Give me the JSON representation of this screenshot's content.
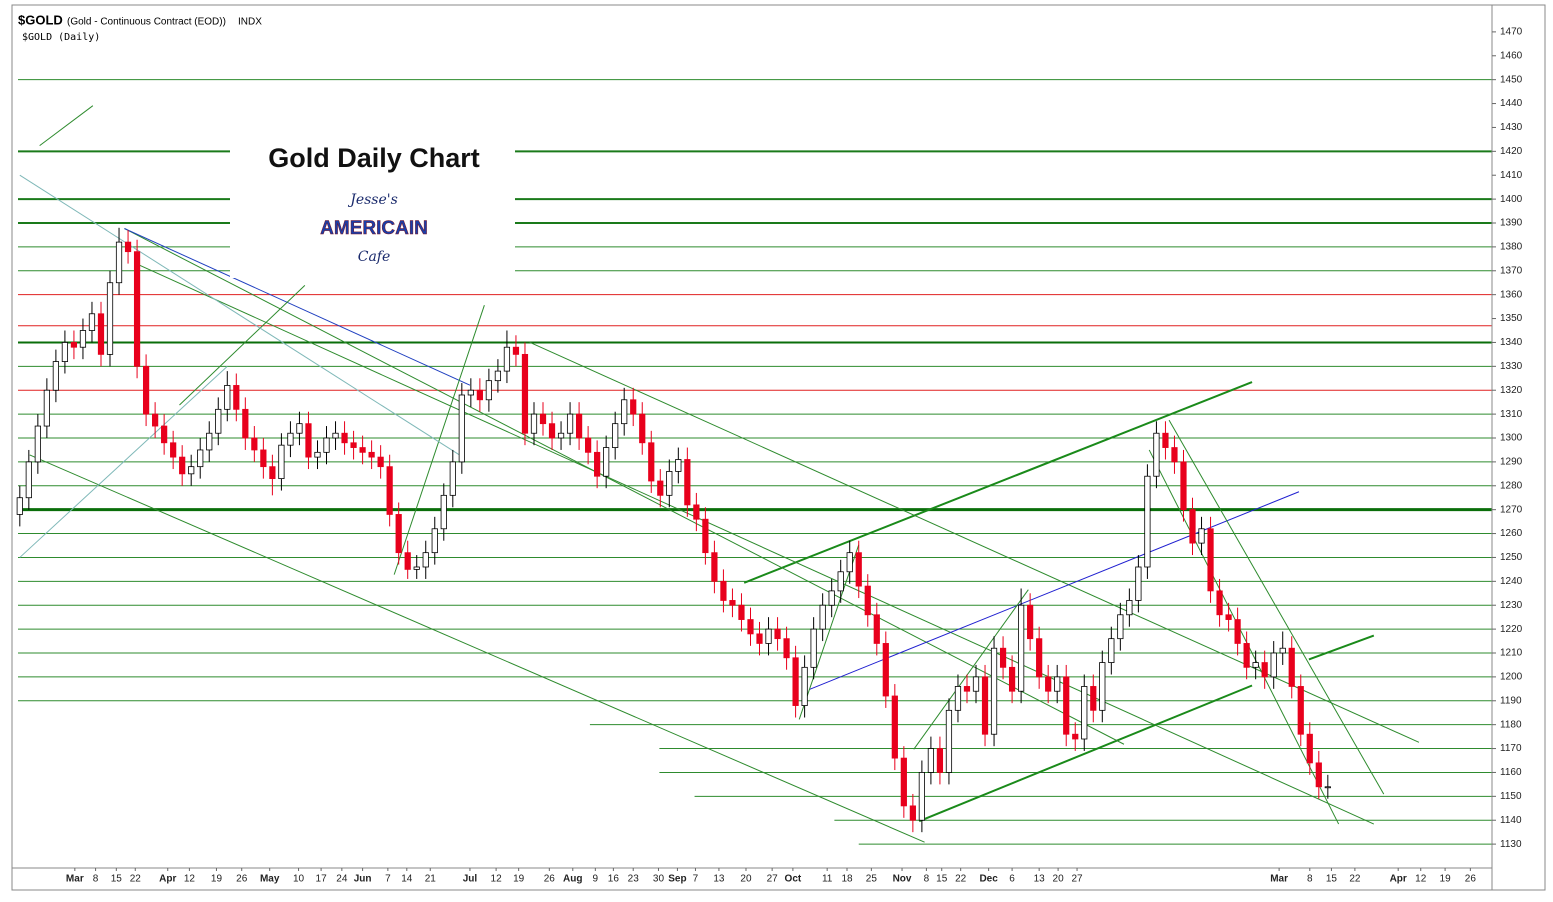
{
  "chart_data": {
    "type": "candlestick",
    "symbol": "$GOLD",
    "description": "(Gold - Continuous Contract (EOD))",
    "exchange": "INDX",
    "subtitle": "$GOLD (Daily)",
    "title": "Gold Daily Chart",
    "logo": [
      "Jesse's",
      "AMERICAIN",
      "Cafe"
    ],
    "up_color": "#ffffff",
    "down_color": "#e8001c",
    "ylim": [
      1120,
      1480
    ],
    "yticks": [
      1130,
      1140,
      1150,
      1160,
      1170,
      1180,
      1190,
      1200,
      1210,
      1220,
      1230,
      1240,
      1250,
      1260,
      1270,
      1280,
      1290,
      1300,
      1310,
      1320,
      1330,
      1340,
      1350,
      1360,
      1370,
      1380,
      1390,
      1400,
      1410,
      1420,
      1430,
      1440,
      1450,
      1460,
      1470
    ],
    "xlim": [
      -0.2,
      163.2
    ],
    "xticks": [
      {
        "value": 6.1,
        "label": "Mar"
      },
      {
        "value": 8.4,
        "label": "8"
      },
      {
        "value": 10.7,
        "label": "15"
      },
      {
        "value": 12.8,
        "label": "22"
      },
      {
        "value": 16.4,
        "label": "Apr"
      },
      {
        "value": 18.8,
        "label": "12"
      },
      {
        "value": 21.8,
        "label": "19"
      },
      {
        "value": 24.6,
        "label": "26"
      },
      {
        "value": 27.7,
        "label": "May"
      },
      {
        "value": 30.9,
        "label": "10"
      },
      {
        "value": 33.4,
        "label": "17"
      },
      {
        "value": 35.7,
        "label": "24"
      },
      {
        "value": 38.0,
        "label": "Jun"
      },
      {
        "value": 40.8,
        "label": "7"
      },
      {
        "value": 42.9,
        "label": "14"
      },
      {
        "value": 45.5,
        "label": "21"
      },
      {
        "value": 49.9,
        "label": "Jul"
      },
      {
        "value": 52.8,
        "label": "12"
      },
      {
        "value": 55.3,
        "label": "19"
      },
      {
        "value": 58.7,
        "label": "26"
      },
      {
        "value": 61.3,
        "label": "Aug"
      },
      {
        "value": 63.8,
        "label": "9"
      },
      {
        "value": 65.8,
        "label": "16"
      },
      {
        "value": 68.0,
        "label": "23"
      },
      {
        "value": 70.8,
        "label": "30"
      },
      {
        "value": 72.9,
        "label": "Sep"
      },
      {
        "value": 74.9,
        "label": "7"
      },
      {
        "value": 77.5,
        "label": "13"
      },
      {
        "value": 80.5,
        "label": "20"
      },
      {
        "value": 83.4,
        "label": "27"
      },
      {
        "value": 85.7,
        "label": "Oct"
      },
      {
        "value": 89.5,
        "label": "11"
      },
      {
        "value": 91.7,
        "label": "18"
      },
      {
        "value": 94.4,
        "label": "25"
      },
      {
        "value": 97.8,
        "label": "Nov"
      },
      {
        "value": 100.5,
        "label": "8"
      },
      {
        "value": 102.2,
        "label": "15"
      },
      {
        "value": 104.3,
        "label": "22"
      },
      {
        "value": 107.4,
        "label": "Dec"
      },
      {
        "value": 110.0,
        "label": "6"
      },
      {
        "value": 113.0,
        "label": "13"
      },
      {
        "value": 115.1,
        "label": "20"
      },
      {
        "value": 117.2,
        "label": "27"
      },
      {
        "value": 139.6,
        "label": "Mar"
      },
      {
        "value": 143.0,
        "label": "8"
      },
      {
        "value": 145.4,
        "label": "15"
      },
      {
        "value": 148.0,
        "label": "22"
      },
      {
        "value": 152.8,
        "label": "Apr"
      },
      {
        "value": 155.3,
        "label": "12"
      },
      {
        "value": 158.0,
        "label": "19"
      },
      {
        "value": 160.8,
        "label": "26"
      }
    ],
    "open": [
      1268,
      1275,
      1290,
      1305,
      1320,
      1332,
      1340,
      1338,
      1345,
      1352,
      1335,
      1365,
      1382,
      1378,
      1330,
      1310,
      1305,
      1298,
      1292,
      1285,
      1288,
      1295,
      1302,
      1312,
      1322,
      1312,
      1300,
      1295,
      1288,
      1283,
      1297,
      1302,
      1306,
      1292,
      1294,
      1300,
      1302,
      1298,
      1296,
      1294,
      1292,
      1288,
      1268,
      1252,
      1245,
      1246,
      1252,
      1262,
      1276,
      1290,
      1318,
      1320,
      1316,
      1324,
      1328,
      1338,
      1335,
      1302,
      1310,
      1306,
      1300,
      1302,
      1310,
      1300,
      1294,
      1284,
      1296,
      1306,
      1316,
      1310,
      1298,
      1282,
      1276,
      1286,
      1291,
      1272,
      1266,
      1252,
      1240,
      1232,
      1230,
      1224,
      1218,
      1214,
      1220,
      1216,
      1208,
      1188,
      1204,
      1220,
      1230,
      1236,
      1244,
      1252,
      1238,
      1226,
      1214,
      1192,
      1166,
      1146,
      1140,
      1160,
      1170,
      1160,
      1186,
      1196,
      1194,
      1200,
      1176,
      1212,
      1204,
      1194,
      1230,
      1216,
      1200,
      1194,
      1200,
      1176,
      1174,
      1196,
      1186,
      1206,
      1216,
      1226,
      1232,
      1246,
      1284,
      1302,
      1296,
      1290,
      1270,
      1256,
      1262,
      1236,
      1226,
      1224,
      1214,
      1204,
      1206,
      1200,
      1210,
      1212,
      1196,
      1176,
      1164,
      1154
    ],
    "high": [
      1280,
      1295,
      1310,
      1325,
      1337,
      1345,
      1345,
      1350,
      1357,
      1357,
      1370,
      1388,
      1387,
      1383,
      1335,
      1315,
      1310,
      1303,
      1297,
      1293,
      1300,
      1307,
      1317,
      1328,
      1327,
      1317,
      1305,
      1300,
      1293,
      1302,
      1307,
      1311,
      1311,
      1299,
      1305,
      1307,
      1307,
      1303,
      1301,
      1299,
      1297,
      1293,
      1273,
      1257,
      1251,
      1257,
      1267,
      1281,
      1295,
      1323,
      1325,
      1325,
      1329,
      1333,
      1345,
      1343,
      1340,
      1315,
      1315,
      1311,
      1307,
      1315,
      1315,
      1305,
      1299,
      1301,
      1311,
      1321,
      1321,
      1315,
      1303,
      1287,
      1291,
      1296,
      1296,
      1277,
      1271,
      1257,
      1245,
      1237,
      1235,
      1229,
      1223,
      1225,
      1225,
      1221,
      1213,
      1209,
      1225,
      1235,
      1241,
      1249,
      1257,
      1257,
      1243,
      1231,
      1219,
      1197,
      1171,
      1151,
      1165,
      1175,
      1175,
      1191,
      1201,
      1201,
      1205,
      1205,
      1217,
      1217,
      1209,
      1237,
      1235,
      1221,
      1205,
      1205,
      1205,
      1181,
      1201,
      1201,
      1211,
      1221,
      1231,
      1237,
      1251,
      1289,
      1307,
      1307,
      1301,
      1295,
      1275,
      1267,
      1267,
      1241,
      1231,
      1229,
      1219,
      1211,
      1211,
      1215,
      1219,
      1217,
      1201,
      1181,
      1169,
      1159
    ],
    "low": [
      1263,
      1270,
      1285,
      1300,
      1315,
      1327,
      1333,
      1333,
      1340,
      1330,
      1330,
      1360,
      1373,
      1325,
      1305,
      1300,
      1293,
      1287,
      1280,
      1280,
      1283,
      1290,
      1297,
      1307,
      1307,
      1295,
      1290,
      1283,
      1276,
      1278,
      1292,
      1297,
      1287,
      1287,
      1289,
      1295,
      1293,
      1291,
      1289,
      1287,
      1283,
      1263,
      1247,
      1241,
      1241,
      1241,
      1247,
      1257,
      1271,
      1285,
      1313,
      1311,
      1311,
      1319,
      1323,
      1330,
      1297,
      1297,
      1301,
      1295,
      1295,
      1297,
      1295,
      1289,
      1279,
      1279,
      1291,
      1301,
      1305,
      1293,
      1277,
      1271,
      1271,
      1281,
      1267,
      1261,
      1247,
      1235,
      1227,
      1225,
      1219,
      1213,
      1209,
      1209,
      1211,
      1203,
      1183,
      1183,
      1199,
      1215,
      1225,
      1231,
      1239,
      1233,
      1221,
      1209,
      1187,
      1161,
      1141,
      1135,
      1135,
      1155,
      1155,
      1155,
      1181,
      1189,
      1189,
      1171,
      1171,
      1199,
      1189,
      1189,
      1211,
      1195,
      1189,
      1189,
      1171,
      1169,
      1169,
      1181,
      1181,
      1201,
      1211,
      1221,
      1227,
      1241,
      1279,
      1291,
      1285,
      1265,
      1251,
      1251,
      1231,
      1221,
      1219,
      1209,
      1199,
      1199,
      1195,
      1195,
      1205,
      1191,
      1171,
      1159,
      1149,
      1149
    ],
    "close": [
      1275,
      1290,
      1305,
      1320,
      1332,
      1340,
      1338,
      1345,
      1352,
      1335,
      1365,
      1382,
      1378,
      1330,
      1310,
      1305,
      1298,
      1292,
      1285,
      1288,
      1295,
      1302,
      1312,
      1322,
      1312,
      1300,
      1295,
      1288,
      1283,
      1297,
      1302,
      1306,
      1292,
      1294,
      1300,
      1302,
      1298,
      1296,
      1294,
      1292,
      1288,
      1268,
      1252,
      1245,
      1246,
      1252,
      1262,
      1276,
      1290,
      1318,
      1320,
      1316,
      1324,
      1328,
      1338,
      1335,
      1302,
      1310,
      1306,
      1300,
      1302,
      1310,
      1300,
      1294,
      1284,
      1296,
      1306,
      1316,
      1310,
      1298,
      1282,
      1276,
      1286,
      1291,
      1272,
      1266,
      1252,
      1240,
      1232,
      1230,
      1224,
      1218,
      1214,
      1220,
      1216,
      1208,
      1188,
      1204,
      1220,
      1230,
      1236,
      1244,
      1252,
      1238,
      1226,
      1214,
      1192,
      1166,
      1146,
      1140,
      1160,
      1170,
      1160,
      1186,
      1196,
      1194,
      1200,
      1176,
      1212,
      1204,
      1194,
      1230,
      1216,
      1200,
      1194,
      1200,
      1176,
      1174,
      1196,
      1186,
      1206,
      1216,
      1226,
      1232,
      1246,
      1284,
      1302,
      1296,
      1290,
      1270,
      1256,
      1262,
      1236,
      1226,
      1224,
      1214,
      1204,
      1206,
      1200,
      1210,
      1212,
      1196,
      1176,
      1164,
      1154,
      1154
    ],
    "hlines": [
      {
        "value": 1450,
        "color": "#2e8b2e",
        "width": 1
      },
      {
        "value": 1420,
        "color": "#1a7a1a",
        "width": 2
      },
      {
        "value": 1400,
        "color": "#1a7a1a",
        "width": 2
      },
      {
        "value": 1390,
        "color": "#1a7a1a",
        "width": 2
      },
      {
        "value": 1380,
        "color": "#2e8b2e",
        "width": 1
      },
      {
        "value": 1370,
        "color": "#2e8b2e",
        "width": 1
      },
      {
        "value": 1360,
        "color": "#e02020",
        "width": 1
      },
      {
        "value": 1347,
        "color": "#e02020",
        "width": 1
      },
      {
        "value": 1340,
        "color": "#0a6e0a",
        "width": 2
      },
      {
        "value": 1330,
        "color": "#2e8b2e",
        "width": 1
      },
      {
        "value": 1320,
        "color": "#e02020",
        "width": 1
      },
      {
        "value": 1310,
        "color": "#2e8b2e",
        "width": 1
      },
      {
        "value": 1300,
        "color": "#2e8b2e",
        "width": 1
      },
      {
        "value": 1290,
        "color": "#2e8b2e",
        "width": 1
      },
      {
        "value": 1280,
        "color": "#2e8b2e",
        "width": 1
      },
      {
        "value": 1270,
        "color": "#0a6e0a",
        "width": 3
      },
      {
        "value": 1260,
        "color": "#2e8b2e",
        "width": 1
      },
      {
        "value": 1250,
        "color": "#2e8b2e",
        "width": 1
      },
      {
        "value": 1240,
        "color": "#2e8b2e",
        "width": 1
      },
      {
        "value": 1230,
        "color": "#2e8b2e",
        "width": 1
      },
      {
        "value": 1220,
        "color": "#2e8b2e",
        "width": 1
      },
      {
        "value": 1210,
        "color": "#2e8b2e",
        "width": 1
      },
      {
        "value": 1200,
        "color": "#2e8b2e",
        "width": 1
      },
      {
        "value": 1190,
        "color": "#2e8b2e",
        "width": 1
      },
      {
        "value": 1180,
        "color": "#2e8b2e",
        "width": 1,
        "start": 63.2
      },
      {
        "value": 1170,
        "color": "#2e8b2e",
        "width": 1,
        "start": 70.9
      },
      {
        "value": 1160,
        "color": "#2e8b2e",
        "width": 1,
        "start": 70.9
      },
      {
        "value": 1150,
        "color": "#2e8b2e",
        "width": 1,
        "start": 74.8
      },
      {
        "value": 1140,
        "color": "#2e8b2e",
        "width": 1,
        "start": 90.3
      },
      {
        "value": 1130,
        "color": "#2e8b2e",
        "width": 1,
        "start": 93.0
      }
    ],
    "trendlines": [
      {
        "x": [
          80.3,
          136.6
        ],
        "y": [
          1239.4,
          1323.4
        ],
        "color": "#1a8a1a",
        "width": 2
      },
      {
        "x": [
          99.7,
          136.6
        ],
        "y": [
          1139.6,
          1196.4
        ],
        "color": "#1a8a1a",
        "width": 2
      },
      {
        "x": [
          1.1,
          100.3
        ],
        "y": [
          1292.9,
          1130.8
        ],
        "color": "#2e8b2e",
        "width": 1
      },
      {
        "x": [
          11.6,
          122.4
        ],
        "y": [
          1387.7,
          1171.8
        ],
        "color": "#2e8b2e",
        "width": 1
      },
      {
        "x": [
          13.3,
          150.1
        ],
        "y": [
          1372.3,
          1138.4
        ],
        "color": "#2e8b2e",
        "width": 1
      },
      {
        "x": [
          56.5,
          155.1
        ],
        "y": [
          1340.1,
          1172.6
        ],
        "color": "#2e8b2e",
        "width": 1
      },
      {
        "x": [
          11.6,
          49.9
        ],
        "y": [
          1387.7,
          1322.1
        ],
        "color": "#2040c0",
        "width": 1
      },
      {
        "x": [
          87.5,
          141.8
        ],
        "y": [
          1194.7,
          1277.5
        ],
        "color": "#2020d0",
        "width": 1
      },
      {
        "x": [
          127.4,
          151.2
        ],
        "y": [
          1307.5,
          1150.9
        ],
        "color": "#2e8b2e",
        "width": 1
      },
      {
        "x": [
          125.2,
          146.2
        ],
        "y": [
          1295.0,
          1138.4
        ],
        "color": "#2e8b2e",
        "width": 1
      },
      {
        "x": [
          41.5,
          51.5
        ],
        "y": [
          1242.8,
          1355.6
        ],
        "color": "#2e8b2e",
        "width": 1
      },
      {
        "x": [
          86.4,
          93.0
        ],
        "y": [
          1182.2,
          1255.3
        ],
        "color": "#2e8b2e",
        "width": 1
      },
      {
        "x": [
          99.1,
          111.8
        ],
        "y": [
          1169.7,
          1236.5
        ],
        "color": "#2e8b2e",
        "width": 1
      },
      {
        "x": [
          142.9,
          150.1
        ],
        "y": [
          1207.3,
          1217.3
        ],
        "color": "#1a8a1a",
        "width": 2
      },
      {
        "x": [
          17.7,
          31.6
        ],
        "y": [
          1313.8,
          1363.9
        ],
        "color": "#2e8b2e",
        "width": 1
      },
      {
        "x": [
          2.2,
          8.1
        ],
        "y": [
          1422.4,
          1439.1
        ],
        "color": "#2e8b2e",
        "width": 1
      },
      {
        "x": [
          0.0,
          48.7
        ],
        "y": [
          1410.0,
          1293.0
        ],
        "color": "#7fb8b8",
        "width": 1
      },
      {
        "x": [
          0.0,
          23.0
        ],
        "y": [
          1250.0,
          1330.0
        ],
        "color": "#7fb8b8",
        "width": 1
      }
    ]
  }
}
